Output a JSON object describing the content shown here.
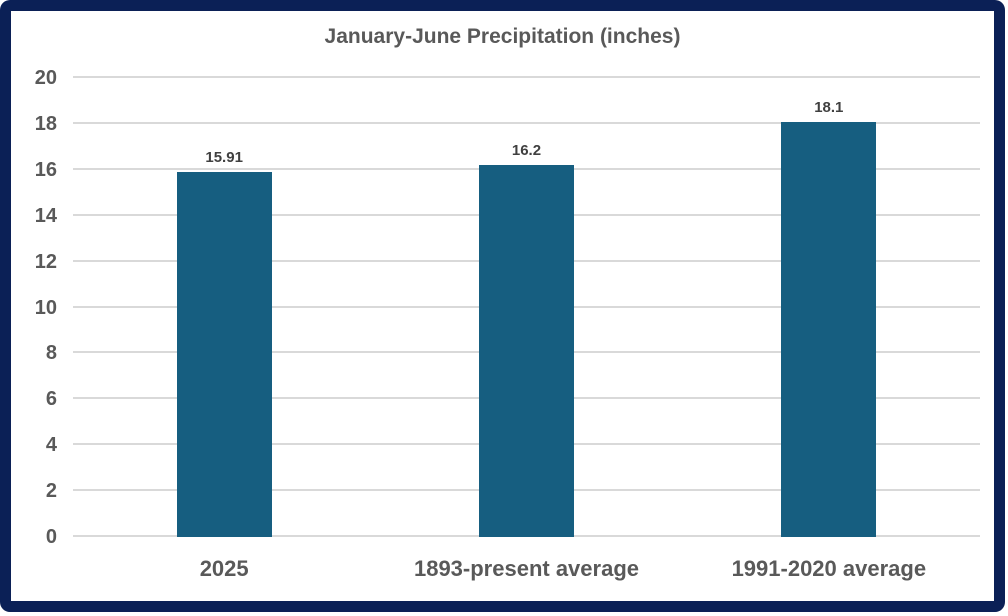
{
  "frame": {
    "border_color": "#0B2056"
  },
  "chart_data": {
    "type": "bar",
    "title": "January-June Precipitation (inches)",
    "categories": [
      "2025",
      "1893-present average",
      "1991-2020 average"
    ],
    "values": [
      15.91,
      16.2,
      18.1
    ],
    "value_labels": [
      "15.91",
      "16.2",
      "18.1"
    ],
    "xlabel": "",
    "ylabel": "",
    "ylim": [
      0,
      20
    ],
    "yticks": [
      0,
      2,
      4,
      6,
      8,
      10,
      12,
      14,
      16,
      18,
      20
    ],
    "grid": true,
    "legend": "none",
    "bar_color": "#165E80",
    "gridline_color": "#D9D9D9",
    "axis_text_color": "#595959",
    "value_label_color": "#404040",
    "title_color": "#595959"
  }
}
